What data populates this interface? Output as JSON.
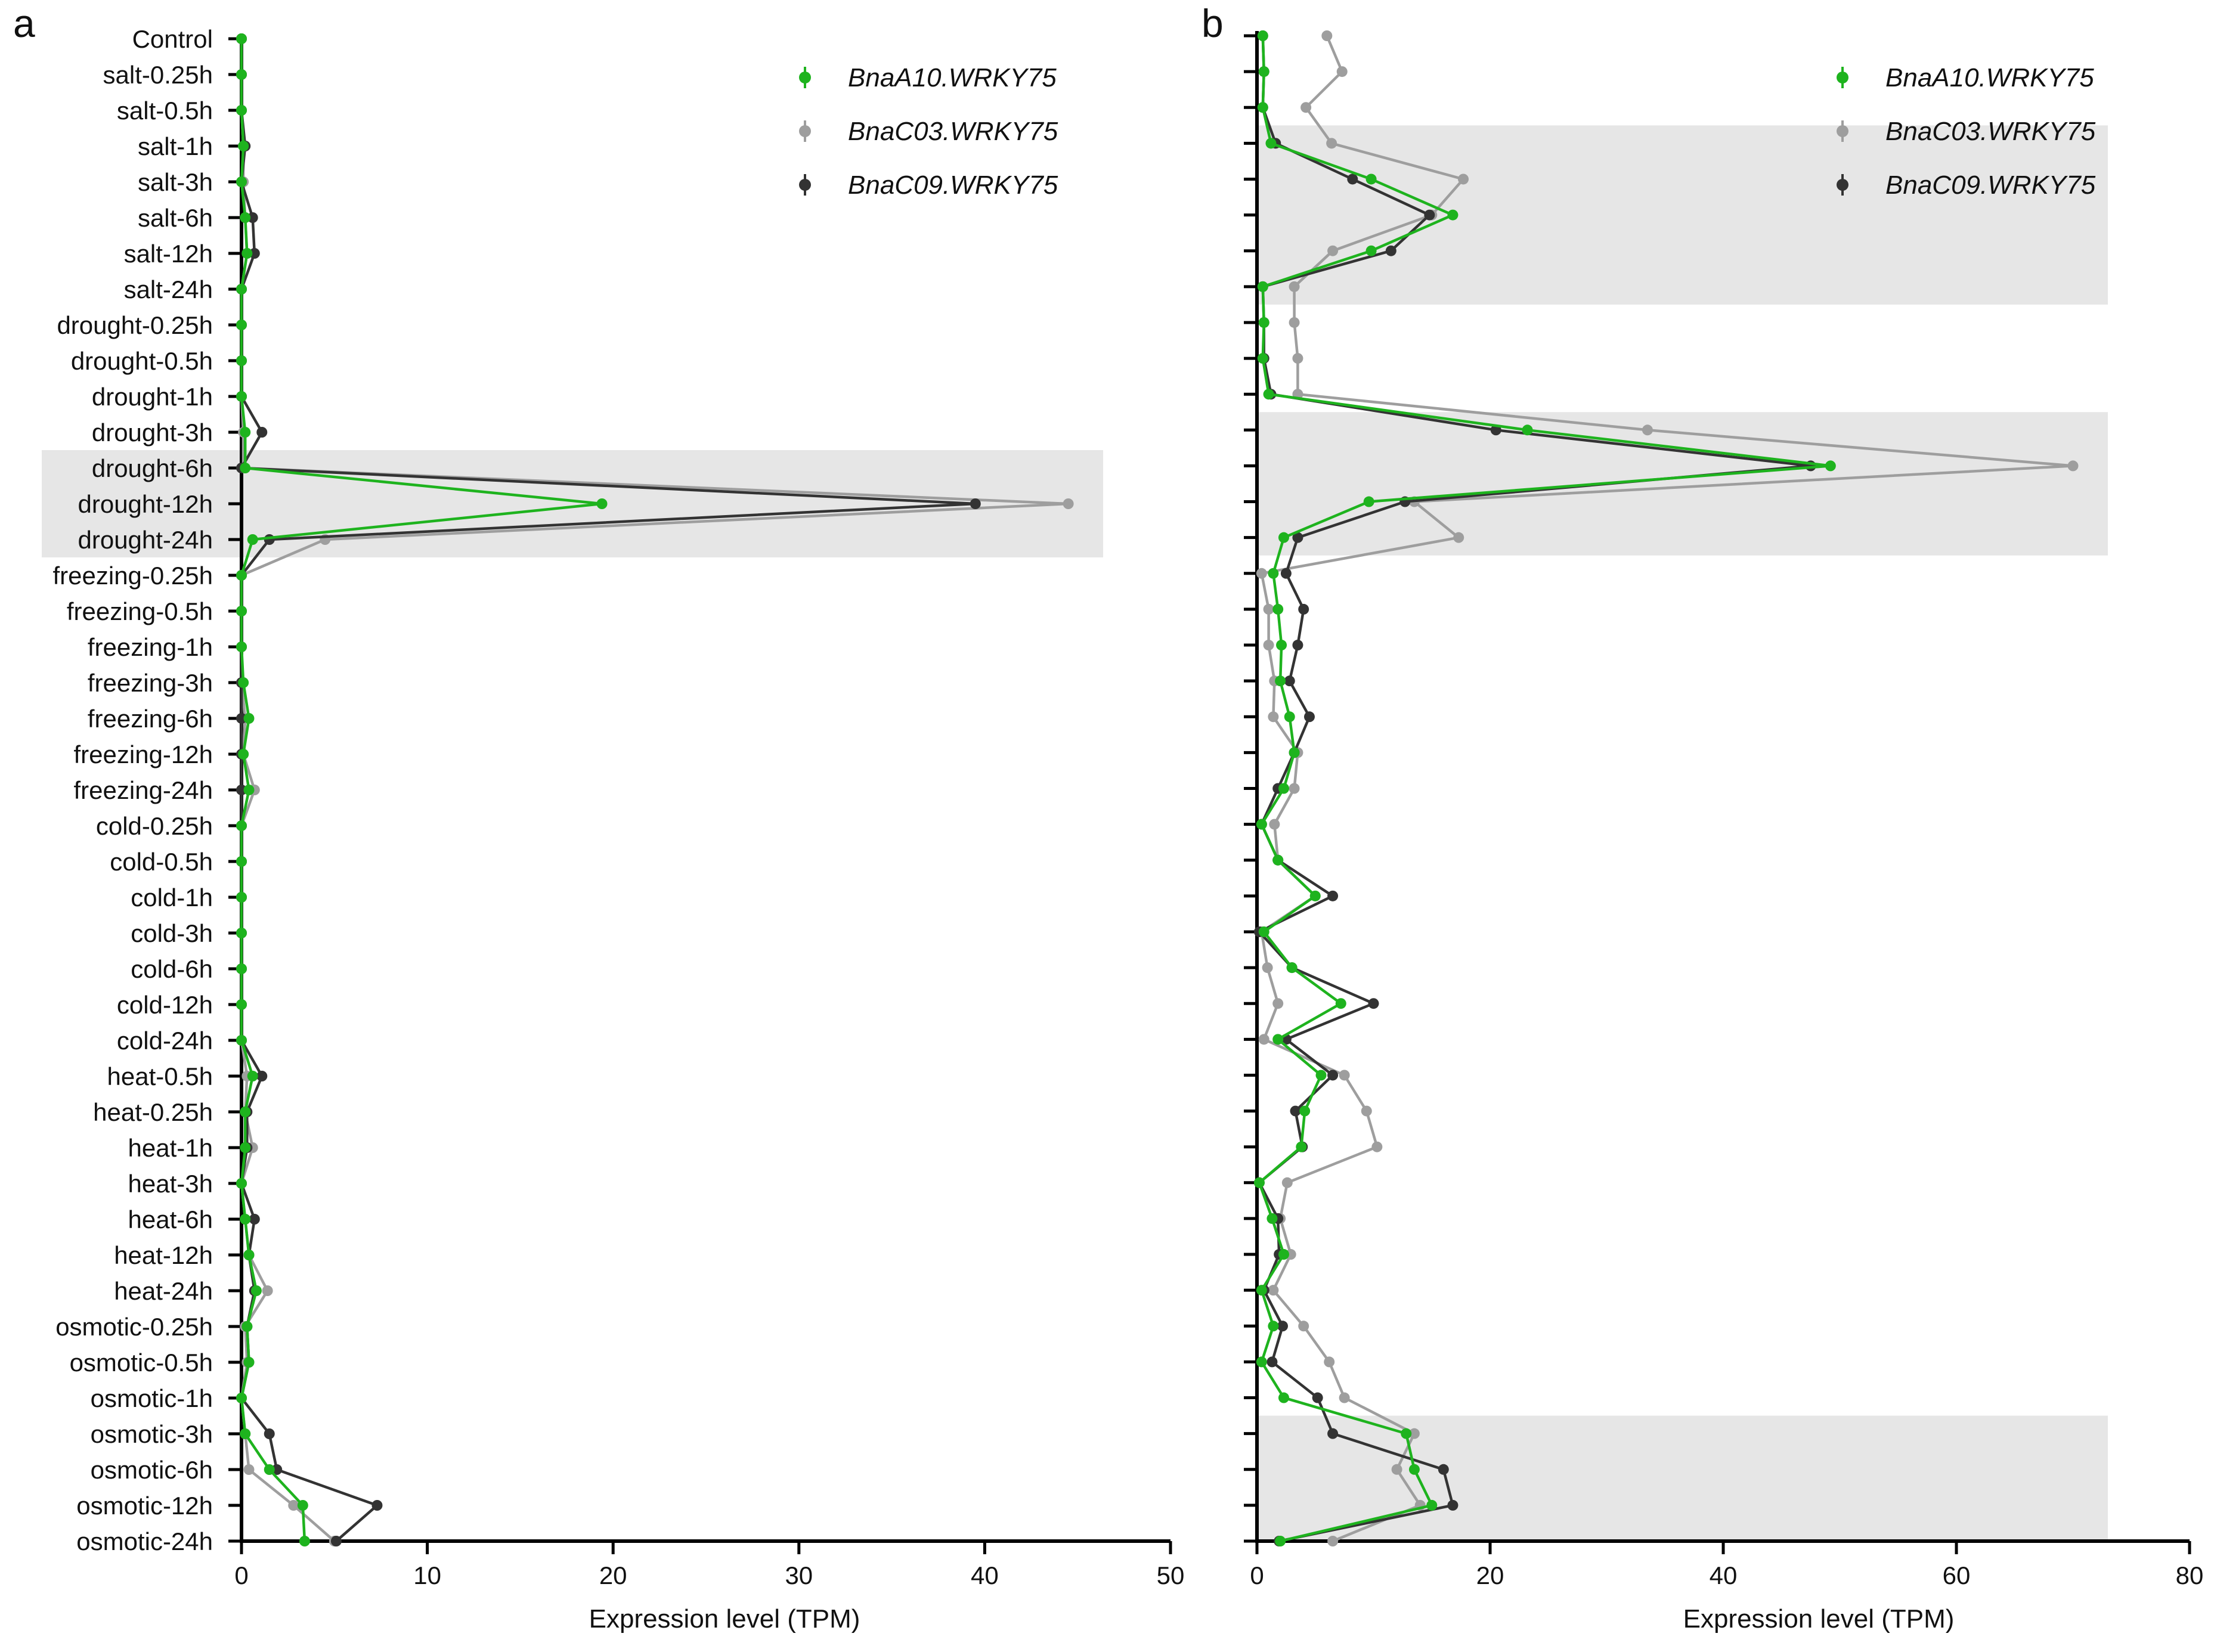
{
  "chart_data": [
    {
      "type": "line",
      "panel_label": "a",
      "orientation": "horizontal",
      "categories": [
        "Control",
        "salt-0.25h",
        "salt-0.5h",
        "salt-1h",
        "salt-3h",
        "salt-6h",
        "salt-12h",
        "salt-24h",
        "drought-0.25h",
        "drought-0.5h",
        "drought-1h",
        "drought-3h",
        "drought-6h",
        "drought-12h",
        "drought-24h",
        "freezing-0.25h",
        "freezing-0.5h",
        "freezing-1h",
        "freezing-3h",
        "freezing-6h",
        "freezing-12h",
        "freezing-24h",
        "cold-0.25h",
        "cold-0.5h",
        "cold-1h",
        "cold-3h",
        "cold-6h",
        "cold-12h",
        "cold-24h",
        "heat-0.5h",
        "heat-0.25h",
        "heat-1h",
        "heat-3h",
        "heat-6h",
        "heat-12h",
        "heat-24h",
        "osmotic-0.25h",
        "osmotic-0.5h",
        "osmotic-1h",
        "osmotic-3h",
        "osmotic-6h",
        "osmotic-12h",
        "osmotic-24h"
      ],
      "xlabel": "Expression level (TPM)",
      "xlim": [
        0,
        50
      ],
      "xticks": [
        0,
        10,
        20,
        30,
        40,
        50
      ],
      "highlight_bands": [
        [
          12,
          14
        ]
      ],
      "series": [
        {
          "name": "BnaC03.WRKY75",
          "color": "#9e9e9e",
          "values": [
            0,
            0,
            0,
            0.1,
            0.1,
            0.2,
            0.3,
            0,
            0,
            0,
            0,
            0.1,
            0.1,
            44.5,
            4.5,
            0,
            0,
            0,
            0,
            0.2,
            0.1,
            0.7,
            0,
            0,
            0,
            0,
            0,
            0,
            0,
            0.3,
            0.2,
            0.6,
            0,
            0.2,
            0.4,
            1.4,
            0.2,
            0.3,
            0,
            0.2,
            0.4,
            2.8,
            5.0
          ]
        },
        {
          "name": "BnaC09.WRKY75",
          "color": "#333333",
          "values": [
            0,
            0,
            0,
            0.2,
            0,
            0.6,
            0.7,
            0,
            0,
            0,
            0,
            1.1,
            0,
            39.5,
            1.5,
            0,
            0,
            0,
            0,
            0,
            0,
            0,
            0,
            0,
            0,
            0,
            0,
            0,
            0,
            1.1,
            0.3,
            0.3,
            0,
            0.7,
            0.4,
            0.7,
            0.3,
            0.4,
            0,
            1.5,
            1.9,
            7.3,
            5.1
          ]
        },
        {
          "name": "BnaA10.WRKY75",
          "color": "#1eb31e",
          "values": [
            0,
            0,
            0,
            0.1,
            0,
            0.2,
            0.3,
            0,
            0,
            0,
            0,
            0.2,
            0.2,
            19.4,
            0.6,
            0,
            0,
            0,
            0.1,
            0.4,
            0.1,
            0.4,
            0,
            0,
            0,
            0,
            0,
            0,
            0,
            0.6,
            0.2,
            0.2,
            0,
            0.2,
            0.4,
            0.8,
            0.3,
            0.4,
            0,
            0.2,
            1.5,
            3.3,
            3.4
          ]
        }
      ]
    },
    {
      "type": "line",
      "panel_label": "b",
      "orientation": "horizontal",
      "categories": [
        "Control",
        "salt-0.25h",
        "salt-0.5h",
        "salt-1h",
        "salt-3h",
        "salt-6h",
        "salt-12h",
        "salt-24h",
        "drought-0.25h",
        "drought-0.5h",
        "drought-1h",
        "drought-3h",
        "drought-6h",
        "drought-12h",
        "drought-24h",
        "freezing-0.25h",
        "freezing-0.5h",
        "freezing-1h",
        "freezing-3h",
        "freezing-6h",
        "freezing-12h",
        "freezing-24h",
        "cold-0.25h",
        "cold-0.5h",
        "cold-1h",
        "cold-3h",
        "cold-6h",
        "cold-12h",
        "cold-24h",
        "heat-0.5h",
        "heat-0.25h",
        "heat-1h",
        "heat-3h",
        "heat-6h",
        "heat-12h",
        "heat-24h",
        "osmotic-0.25h",
        "osmotic-0.5h",
        "osmotic-1h",
        "osmotic-3h",
        "osmotic-6h",
        "osmotic-12h",
        "osmotic-24h"
      ],
      "xlabel": "Expression level (TPM)",
      "xlim": [
        0,
        80
      ],
      "xticks": [
        0,
        20,
        40,
        60,
        80
      ],
      "highlight_bands": [
        [
          3,
          7
        ],
        [
          11,
          14
        ],
        [
          39,
          42
        ]
      ],
      "series": [
        {
          "name": "BnaC03.WRKY75",
          "color": "#9e9e9e",
          "values": [
            6.0,
            7.3,
            4.2,
            6.4,
            17.7,
            15.0,
            6.5,
            3.2,
            3.2,
            3.5,
            3.5,
            33.5,
            70.0,
            13.5,
            17.3,
            0.4,
            1.0,
            1.0,
            1.5,
            1.4,
            3.5,
            3.2,
            1.5,
            1.8,
            5.0,
            0.4,
            0.9,
            1.8,
            0.6,
            7.5,
            9.4,
            10.3,
            2.6,
            2.0,
            2.9,
            1.4,
            4.0,
            6.2,
            7.5,
            13.5,
            12.0,
            14.0,
            6.5
          ]
        },
        {
          "name": "BnaC09.WRKY75",
          "color": "#333333",
          "values": [
            0.5,
            0.6,
            0.5,
            1.6,
            8.2,
            14.8,
            11.5,
            0.5,
            0.6,
            0.6,
            1.2,
            20.5,
            47.5,
            12.7,
            3.5,
            2.5,
            4.0,
            3.5,
            2.8,
            4.5,
            3.2,
            1.8,
            0.4,
            1.8,
            6.5,
            0.2,
            3.0,
            10.0,
            2.5,
            6.5,
            3.3,
            3.9,
            0.2,
            1.8,
            1.9,
            0.6,
            2.2,
            1.3,
            5.2,
            6.5,
            16.0,
            16.8,
            1.9
          ]
        },
        {
          "name": "BnaA10.WRKY75",
          "color": "#1eb31e",
          "values": [
            0.5,
            0.6,
            0.5,
            1.2,
            9.8,
            16.8,
            9.8,
            0.5,
            0.6,
            0.5,
            1.0,
            23.2,
            49.2,
            9.6,
            2.3,
            1.4,
            1.8,
            2.1,
            2.0,
            2.8,
            3.2,
            2.3,
            0.4,
            1.8,
            5.0,
            0.6,
            3.0,
            7.2,
            1.8,
            5.5,
            4.1,
            3.8,
            0.2,
            1.3,
            2.3,
            0.4,
            1.4,
            0.4,
            2.3,
            12.8,
            13.5,
            15.0,
            2.0
          ]
        }
      ]
    }
  ]
}
